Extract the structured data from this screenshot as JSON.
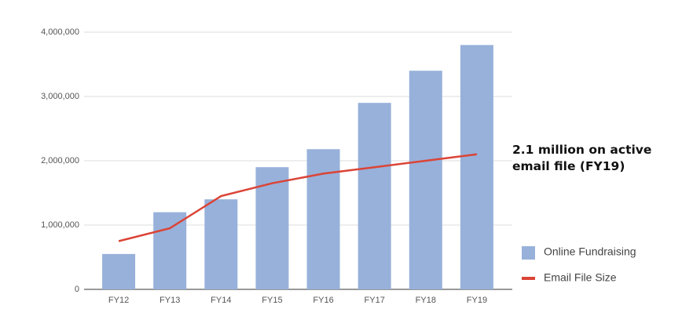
{
  "chart_data": {
    "type": "combo",
    "categories": [
      "FY12",
      "FY13",
      "FY14",
      "FY15",
      "FY16",
      "FY17",
      "FY18",
      "FY19"
    ],
    "series": [
      {
        "name": "Online Fundraising",
        "type": "bar",
        "color": "#97b1da",
        "values": [
          550000,
          1200000,
          1400000,
          1900000,
          2180000,
          2900000,
          3400000,
          3800000
        ]
      },
      {
        "name": "Email File Size",
        "type": "line",
        "color": "#db4437",
        "values": [
          750000,
          950000,
          1450000,
          1650000,
          1800000,
          1900000,
          2000000,
          2100000
        ]
      }
    ],
    "ylim": [
      0,
      4000000
    ],
    "yticks": [
      0,
      {
        "value": 1000000,
        "label": "1,000,000"
      },
      {
        "value": 2000000,
        "label": "2,000,000"
      },
      {
        "value": 3000000,
        "label": "3,000,000"
      },
      {
        "value": 4000000,
        "label": "4,000,000"
      }
    ],
    "grid": true,
    "legend": "right",
    "annotation": [
      "2.1 million on active",
      "email file (FY19)"
    ]
  }
}
